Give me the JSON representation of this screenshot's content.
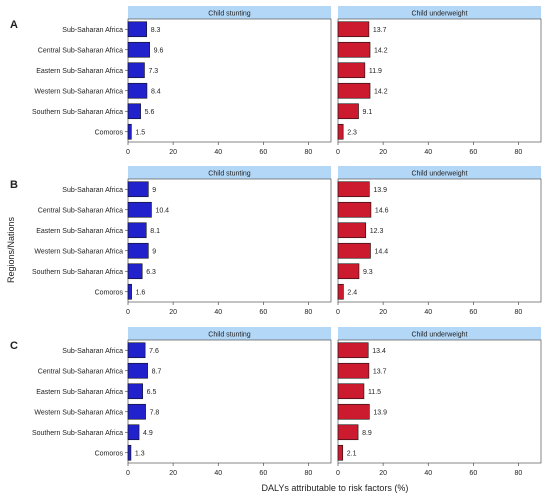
{
  "chart_data": {
    "type": "bar",
    "orientation": "horizontal",
    "ylabel": "Regions/Nations",
    "xlabel": "DALYs attributable to risk factors (%)",
    "xlim": [
      0,
      90
    ],
    "xticks": [
      0,
      20,
      40,
      60,
      80
    ],
    "categories": [
      "Sub-Saharan Africa",
      "Central Sub-Saharan Africa",
      "Eastern Sub-Saharan Africa",
      "Western Sub-Saharan Africa",
      "Southern Sub-Saharan Africa",
      "Comoros"
    ],
    "facets": [
      "Child stunting",
      "Child underweight"
    ],
    "colors": {
      "Child stunting": "#2222cc",
      "Child underweight": "#cc1a2e",
      "strip": "#b3d7f7"
    },
    "panels": [
      {
        "label": "A",
        "series": [
          {
            "name": "Child stunting",
            "values": [
              8.3,
              9.6,
              7.3,
              8.4,
              5.6,
              1.5
            ]
          },
          {
            "name": "Child underweight",
            "values": [
              13.7,
              14.2,
              11.9,
              14.2,
              9.1,
              2.3
            ]
          }
        ]
      },
      {
        "label": "B",
        "series": [
          {
            "name": "Child stunting",
            "values": [
              9,
              10.4,
              8.1,
              9,
              6.3,
              1.6
            ]
          },
          {
            "name": "Child underweight",
            "values": [
              13.9,
              14.6,
              12.3,
              14.4,
              9.3,
              2.4
            ]
          }
        ]
      },
      {
        "label": "C",
        "series": [
          {
            "name": "Child stunting",
            "values": [
              7.6,
              8.7,
              6.5,
              7.8,
              4.9,
              1.3
            ]
          },
          {
            "name": "Child underweight",
            "values": [
              13.4,
              13.7,
              11.5,
              13.9,
              8.9,
              2.1
            ]
          }
        ]
      }
    ],
    "grid": false,
    "legend": "none"
  }
}
